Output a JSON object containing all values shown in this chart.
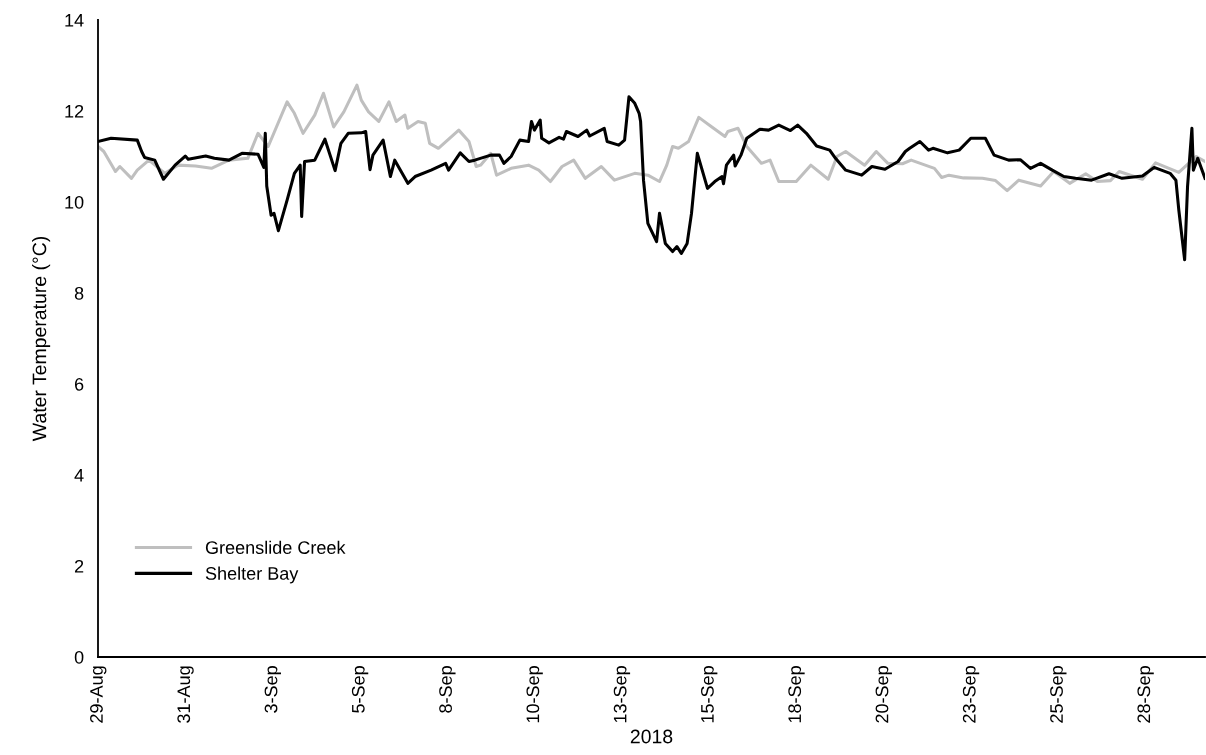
{
  "chart_data": {
    "type": "line",
    "xlabel": "2018",
    "ylabel": "Water Temperature (°C)",
    "xlim": [
      "2018-08-29T00:00",
      "2018-09-29T17:00"
    ],
    "xticks": [
      {
        "value": "2018-08-29T00:00",
        "label": "29-Aug"
      },
      {
        "value": "2018-08-31T12:00",
        "label": "31-Aug"
      },
      {
        "value": "2018-09-03T00:00",
        "label": "3-Sep"
      },
      {
        "value": "2018-09-05T12:00",
        "label": "5-Sep"
      },
      {
        "value": "2018-09-08T00:00",
        "label": "8-Sep"
      },
      {
        "value": "2018-09-10T12:00",
        "label": "10-Sep"
      },
      {
        "value": "2018-09-13T00:00",
        "label": "13-Sep"
      },
      {
        "value": "2018-09-15T12:00",
        "label": "15-Sep"
      },
      {
        "value": "2018-09-18T00:00",
        "label": "18-Sep"
      },
      {
        "value": "2018-09-20T12:00",
        "label": "20-Sep"
      },
      {
        "value": "2018-09-23T00:00",
        "label": "23-Sep"
      },
      {
        "value": "2018-09-25T12:00",
        "label": "25-Sep"
      },
      {
        "value": "2018-09-28T00:00",
        "label": "28-Sep"
      }
    ],
    "ylim": [
      0,
      14
    ],
    "yticks": [
      0,
      2,
      4,
      6,
      8,
      10,
      12,
      14
    ],
    "grid": false,
    "legend": "bottom left",
    "marker": "none",
    "line_style": "solid",
    "series": [
      {
        "name": "Greenslide Creek",
        "color": "#bfbfbf",
        "x": [
          "2018-08-29T00:00",
          "2018-08-29T04:00",
          "2018-08-29T12:00",
          "2018-08-29T15:00",
          "2018-08-29T23:00",
          "2018-08-30T03:00",
          "2018-08-30T11:00",
          "2018-08-30T22:00",
          "2018-08-31T07:00",
          "2018-08-31T19:00",
          "2018-09-01T06:00",
          "2018-09-01T18:00",
          "2018-09-02T07:00",
          "2018-09-02T14:00",
          "2018-09-02T21:00",
          "2018-09-03T10:00",
          "2018-09-03T15:00",
          "2018-09-03T21:00",
          "2018-09-04T05:00",
          "2018-09-04T11:00",
          "2018-09-04T18:00",
          "2018-09-05T01:00",
          "2018-09-05T10:00",
          "2018-09-05T13:00",
          "2018-09-05T18:00",
          "2018-09-06T01:00",
          "2018-09-06T08:00",
          "2018-09-06T13:00",
          "2018-09-06T19:00",
          "2018-09-06T21:00",
          "2018-09-07T04:00",
          "2018-09-07T09:00",
          "2018-09-07T12:00",
          "2018-09-07T18:00",
          "2018-09-08T08:00",
          "2018-09-08T15:00",
          "2018-09-08T20:00",
          "2018-09-08T23:00",
          "2018-09-09T06:00",
          "2018-09-09T10:00",
          "2018-09-09T20:00",
          "2018-09-10T08:00",
          "2018-09-10T15:00",
          "2018-09-10T23:00",
          "2018-09-11T07:00",
          "2018-09-11T15:00",
          "2018-09-11T23:00",
          "2018-09-12T10:00",
          "2018-09-12T19:00",
          "2018-09-13T09:00",
          "2018-09-13T18:00",
          "2018-09-14T02:00",
          "2018-09-14T07:00",
          "2018-09-14T11:00",
          "2018-09-14T15:00",
          "2018-09-14T22:00",
          "2018-09-15T05:00",
          "2018-09-15T14:00",
          "2018-09-15T23:00",
          "2018-09-16T01:00",
          "2018-09-16T08:00",
          "2018-09-16T14:00",
          "2018-09-17T00:00",
          "2018-09-17T06:00",
          "2018-09-17T12:00",
          "2018-09-18T00:00",
          "2018-09-18T10:00",
          "2018-09-18T22:00",
          "2018-09-19T04:00",
          "2018-09-19T10:00",
          "2018-09-19T23:00",
          "2018-09-20T07:00",
          "2018-09-20T15:00",
          "2018-09-21T01:00",
          "2018-09-21T07:00",
          "2018-09-21T23:00",
          "2018-09-22T04:00",
          "2018-09-22T09:00",
          "2018-09-22T19:00",
          "2018-09-23T08:00",
          "2018-09-23T17:00",
          "2018-09-24T01:00",
          "2018-09-24T09:00",
          "2018-09-25T00:00",
          "2018-09-25T09:00",
          "2018-09-25T20:00",
          "2018-09-26T07:00",
          "2018-09-26T15:00",
          "2018-09-27T00:00",
          "2018-09-27T06:00",
          "2018-09-27T22:00",
          "2018-09-28T07:00",
          "2018-09-28T23:00",
          "2018-09-29T11:00",
          "2018-09-29T17:00"
        ],
        "values": [
          11.22,
          11.11,
          10.67,
          10.78,
          10.52,
          10.7,
          10.92,
          10.63,
          10.81,
          10.79,
          10.74,
          10.92,
          10.96,
          11.51,
          11.22,
          12.2,
          11.95,
          11.51,
          11.91,
          12.39,
          11.65,
          11.98,
          12.57,
          12.24,
          11.98,
          11.77,
          12.2,
          11.77,
          11.91,
          11.62,
          11.77,
          11.73,
          11.29,
          11.18,
          11.58,
          11.33,
          10.78,
          10.81,
          11.07,
          10.59,
          10.74,
          10.81,
          10.7,
          10.45,
          10.78,
          10.92,
          10.52,
          10.78,
          10.48,
          10.63,
          10.59,
          10.45,
          10.81,
          11.22,
          11.18,
          11.33,
          11.86,
          11.65,
          11.44,
          11.55,
          11.62,
          11.22,
          10.85,
          10.92,
          10.45,
          10.45,
          10.81,
          10.5,
          11.0,
          11.11,
          10.81,
          11.11,
          10.85,
          10.84,
          10.92,
          10.74,
          10.54,
          10.59,
          10.53,
          10.52,
          10.47,
          10.25,
          10.48,
          10.35,
          10.67,
          10.41,
          10.62,
          10.45,
          10.47,
          10.67,
          10.5,
          10.86,
          10.65,
          11.0,
          10.89
        ]
      },
      {
        "name": "Shelter Bay",
        "color": "#000000",
        "x": [
          "2018-08-29T00:00",
          "2018-08-29T09:00",
          "2018-08-30T03:00",
          "2018-08-30T06:00",
          "2018-08-30T08:00",
          "2018-08-30T15:00",
          "2018-08-30T21:00",
          "2018-08-31T05:00",
          "2018-08-31T12:00",
          "2018-08-31T14:00",
          "2018-09-01T02:00",
          "2018-09-01T08:00",
          "2018-09-01T18:00",
          "2018-09-02T03:00",
          "2018-09-02T14:00",
          "2018-09-02T18:00",
          "2018-09-02T19:00",
          "2018-09-02T20:00",
          "2018-09-02T23:00",
          "2018-09-03T01:00",
          "2018-09-03T04:00",
          "2018-09-03T10:00",
          "2018-09-03T15:00",
          "2018-09-03T19:00",
          "2018-09-03T20:00",
          "2018-09-03T22:00",
          "2018-09-04T05:00",
          "2018-09-04T12:00",
          "2018-09-04T19:00",
          "2018-09-04T23:00",
          "2018-09-05T04:00",
          "2018-09-05T13:00",
          "2018-09-05T16:00",
          "2018-09-05T19:00",
          "2018-09-05T21:00",
          "2018-09-06T04:00",
          "2018-09-06T09:00",
          "2018-09-06T12:00",
          "2018-09-06T21:00",
          "2018-09-07T02:00",
          "2018-09-07T13:00",
          "2018-09-07T23:00",
          "2018-09-08T01:00",
          "2018-09-08T09:00",
          "2018-09-08T15:00",
          "2018-09-08T19:00",
          "2018-09-09T06:00",
          "2018-09-09T12:00",
          "2018-09-09T15:00",
          "2018-09-09T20:00",
          "2018-09-10T02:00",
          "2018-09-10T08:00",
          "2018-09-10T10:00",
          "2018-09-10T12:00",
          "2018-09-10T16:00",
          "2018-09-10T17:00",
          "2018-09-10T22:00",
          "2018-09-11T05:00",
          "2018-09-11T08:00",
          "2018-09-11T10:00",
          "2018-09-11T18:00",
          "2018-09-12T00:00",
          "2018-09-12T02:00",
          "2018-09-12T12:00",
          "2018-09-12T14:00",
          "2018-09-12T22:00",
          "2018-09-13T02:00",
          "2018-09-13T05:00",
          "2018-09-13T07:00",
          "2018-09-13T09:00",
          "2018-09-13T12:00",
          "2018-09-13T13:00",
          "2018-09-13T15:00",
          "2018-09-13T18:00",
          "2018-09-14T00:00",
          "2018-09-14T02:00",
          "2018-09-14T06:00",
          "2018-09-14T11:00",
          "2018-09-14T14:00",
          "2018-09-14T17:00",
          "2018-09-14T21:00",
          "2018-09-15T00:00",
          "2018-09-15T04:00",
          "2018-09-15T11:00",
          "2018-09-15T16:00",
          "2018-09-15T21:00",
          "2018-09-15T22:00",
          "2018-09-16T00:00",
          "2018-09-16T05:00",
          "2018-09-16T06:00",
          "2018-09-16T10:00",
          "2018-09-16T14:00",
          "2018-09-16T23:00",
          "2018-09-17T05:00",
          "2018-09-17T12:00",
          "2018-09-17T20:00",
          "2018-09-18T01:00",
          "2018-09-18T07:00",
          "2018-09-18T14:00",
          "2018-09-18T23:00",
          "2018-09-19T03:00",
          "2018-09-19T10:00",
          "2018-09-19T21:00",
          "2018-09-20T04:00",
          "2018-09-20T13:00",
          "2018-09-20T22:00",
          "2018-09-21T03:00",
          "2018-09-21T06:00",
          "2018-09-21T13:00",
          "2018-09-21T19:00",
          "2018-09-21T22:00",
          "2018-09-22T08:00",
          "2018-09-22T16:00",
          "2018-09-23T00:00",
          "2018-09-23T10:00",
          "2018-09-23T16:00",
          "2018-09-24T02:00",
          "2018-09-24T10:00",
          "2018-09-24T17:00",
          "2018-09-25T00:00",
          "2018-09-25T08:00",
          "2018-09-25T16:00",
          "2018-09-26T00:00",
          "2018-09-26T11:00",
          "2018-09-26T23:00",
          "2018-09-27T08:00",
          "2018-09-27T22:00",
          "2018-09-28T06:00",
          "2018-09-28T17:00",
          "2018-09-28T21:00",
          "2018-09-28T23:00",
          "2018-09-29T03:00",
          "2018-09-29T05:00",
          "2018-09-29T08:00",
          "2018-09-29T09:00",
          "2018-09-29T12:00",
          "2018-09-29T17:00"
        ],
        "values": [
          11.33,
          11.4,
          11.36,
          11.11,
          10.98,
          10.92,
          10.5,
          10.81,
          11.01,
          10.94,
          11.01,
          10.96,
          10.92,
          11.07,
          11.05,
          10.76,
          11.51,
          10.35,
          9.71,
          9.75,
          9.37,
          10.04,
          10.63,
          10.81,
          9.68,
          10.89,
          10.92,
          11.38,
          10.69,
          11.29,
          11.51,
          11.52,
          11.55,
          10.71,
          11.03,
          11.36,
          10.56,
          10.92,
          10.41,
          10.56,
          10.7,
          10.85,
          10.7,
          11.08,
          10.89,
          10.92,
          11.03,
          11.03,
          10.85,
          11.0,
          11.36,
          11.33,
          11.77,
          11.58,
          11.8,
          11.4,
          11.3,
          11.42,
          11.38,
          11.55,
          11.44,
          11.58,
          11.45,
          11.62,
          11.33,
          11.25,
          11.36,
          12.31,
          12.24,
          12.17,
          11.95,
          11.77,
          10.48,
          9.53,
          9.13,
          9.75,
          9.09,
          8.91,
          9.02,
          8.87,
          9.09,
          9.75,
          11.07,
          10.3,
          10.45,
          10.56,
          10.4,
          10.81,
          11.03,
          10.79,
          11.03,
          11.4,
          11.6,
          11.58,
          11.69,
          11.57,
          11.69,
          11.51,
          11.23,
          11.14,
          10.96,
          10.7,
          10.59,
          10.78,
          10.72,
          10.89,
          11.11,
          11.18,
          11.33,
          11.14,
          11.18,
          11.08,
          11.14,
          11.4,
          11.4,
          11.03,
          10.92,
          10.93,
          10.74,
          10.85,
          10.7,
          10.56,
          10.52,
          10.48,
          10.62,
          10.52,
          10.57,
          10.76,
          10.63,
          10.48,
          9.82,
          8.73,
          10.34,
          11.62,
          10.7,
          10.96,
          10.52
        ]
      }
    ]
  }
}
